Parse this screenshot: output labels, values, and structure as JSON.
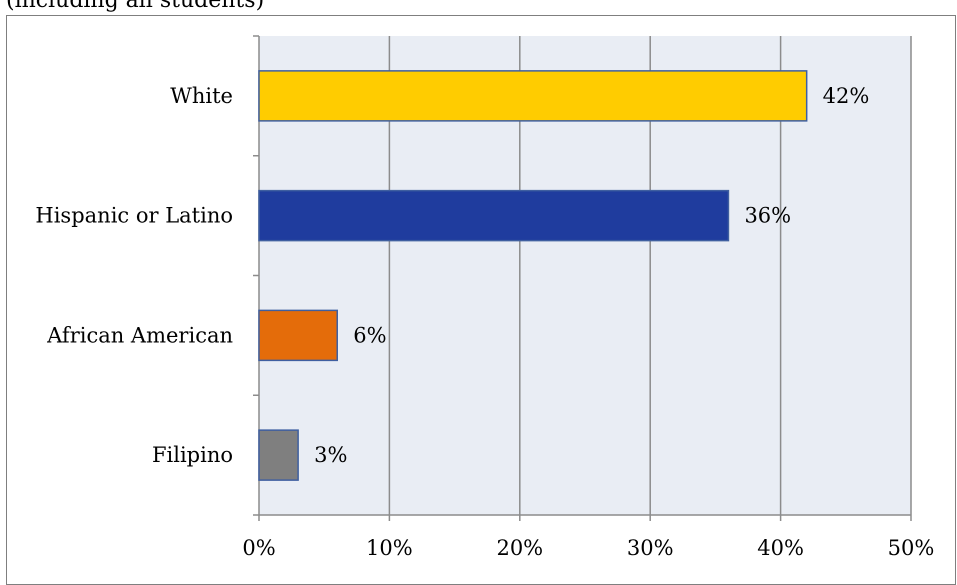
{
  "header": {
    "partial_caption": "(including all students)"
  },
  "chart_data": {
    "type": "bar",
    "orientation": "horizontal",
    "categories": [
      "White",
      "Hispanic or Latino",
      "African American",
      "Filipino"
    ],
    "values": [
      42,
      36,
      6,
      3
    ],
    "data_labels": [
      "42%",
      "36%",
      "6%",
      "3%"
    ],
    "colors": [
      "#FFCC00",
      "#1F3C9E",
      "#E46C0A",
      "#7F7F7F"
    ],
    "xlim": [
      0,
      50
    ],
    "xticks": [
      0,
      10,
      20,
      30,
      40,
      50
    ],
    "xtick_labels": [
      "0%",
      "10%",
      "20%",
      "30%",
      "40%",
      "50%"
    ],
    "title": "",
    "xlabel": "",
    "ylabel": "",
    "grid": true,
    "plot_background": "#E9EDF4",
    "grid_color": "#8C8C8C",
    "bar_outline_color": "#3F5FA0"
  }
}
